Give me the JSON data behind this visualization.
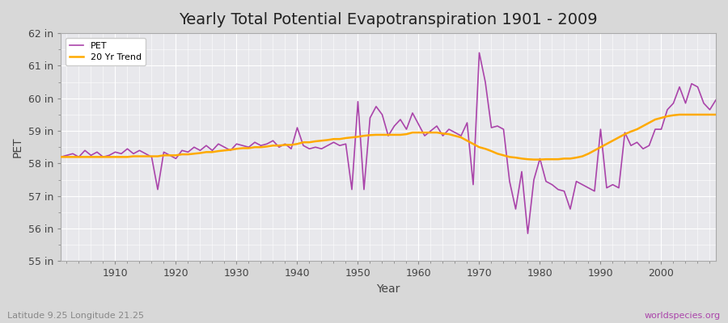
{
  "title": "Yearly Total Potential Evapotranspiration 1901 - 2009",
  "xlabel": "Year",
  "ylabel": "PET",
  "subtitle_left": "Latitude 9.25 Longitude 21.25",
  "subtitle_right": "worldspecies.org",
  "pet_color": "#aa44aa",
  "trend_color": "#ffaa00",
  "bg_color": "#dcdcdc",
  "plot_bg_color": "#e8e8ee",
  "years": [
    1901,
    1902,
    1903,
    1904,
    1905,
    1906,
    1907,
    1908,
    1909,
    1910,
    1911,
    1912,
    1913,
    1914,
    1915,
    1916,
    1917,
    1918,
    1919,
    1920,
    1921,
    1922,
    1923,
    1924,
    1925,
    1926,
    1927,
    1928,
    1929,
    1930,
    1931,
    1932,
    1933,
    1934,
    1935,
    1936,
    1937,
    1938,
    1939,
    1940,
    1941,
    1942,
    1943,
    1944,
    1945,
    1946,
    1947,
    1948,
    1949,
    1950,
    1951,
    1952,
    1953,
    1954,
    1955,
    1956,
    1957,
    1958,
    1959,
    1960,
    1961,
    1962,
    1963,
    1964,
    1965,
    1966,
    1967,
    1968,
    1969,
    1970,
    1971,
    1972,
    1973,
    1974,
    1975,
    1976,
    1977,
    1978,
    1979,
    1980,
    1981,
    1982,
    1983,
    1984,
    1985,
    1986,
    1987,
    1988,
    1989,
    1990,
    1991,
    1992,
    1993,
    1994,
    1995,
    1996,
    1997,
    1998,
    1999,
    2000,
    2001,
    2002,
    2003,
    2004,
    2005,
    2006,
    2007,
    2008,
    2009
  ],
  "pet_values": [
    58.2,
    58.25,
    58.3,
    58.2,
    58.4,
    58.25,
    58.35,
    58.2,
    58.25,
    58.35,
    58.3,
    58.45,
    58.3,
    58.4,
    58.3,
    58.2,
    57.2,
    58.35,
    58.25,
    58.15,
    58.4,
    58.35,
    58.5,
    58.4,
    58.55,
    58.4,
    58.6,
    58.5,
    58.4,
    58.6,
    58.55,
    58.5,
    58.65,
    58.55,
    58.6,
    58.7,
    58.5,
    58.6,
    58.45,
    59.1,
    58.55,
    58.45,
    58.5,
    58.45,
    58.55,
    58.65,
    58.55,
    58.6,
    57.2,
    59.9,
    57.2,
    59.4,
    59.75,
    59.5,
    58.85,
    59.15,
    59.35,
    59.05,
    59.55,
    59.2,
    58.85,
    59.0,
    59.15,
    58.85,
    59.05,
    58.95,
    58.85,
    59.25,
    57.35,
    61.4,
    60.5,
    59.1,
    59.15,
    59.05,
    57.45,
    56.6,
    57.75,
    55.85,
    57.5,
    58.15,
    57.45,
    57.35,
    57.2,
    57.15,
    56.6,
    57.45,
    57.35,
    57.25,
    57.15,
    59.05,
    57.25,
    57.35,
    57.25,
    58.95,
    58.55,
    58.65,
    58.45,
    58.55,
    59.05,
    59.05,
    59.65,
    59.85,
    60.35,
    59.85,
    60.45,
    60.35,
    59.85,
    59.65,
    59.95
  ],
  "trend_values": [
    58.2,
    58.2,
    58.2,
    58.2,
    58.2,
    58.2,
    58.2,
    58.2,
    58.2,
    58.2,
    58.2,
    58.2,
    58.22,
    58.22,
    58.22,
    58.22,
    58.22,
    58.25,
    58.25,
    58.25,
    58.28,
    58.28,
    58.3,
    58.32,
    58.35,
    58.35,
    58.38,
    58.4,
    58.42,
    58.45,
    58.47,
    58.47,
    58.5,
    58.5,
    58.52,
    58.55,
    58.55,
    58.57,
    58.57,
    58.6,
    58.65,
    58.65,
    58.68,
    58.7,
    58.72,
    58.75,
    58.75,
    58.78,
    58.8,
    58.82,
    58.85,
    58.87,
    58.88,
    58.88,
    58.88,
    58.88,
    58.88,
    58.9,
    58.95,
    58.95,
    58.95,
    58.95,
    58.95,
    58.92,
    58.9,
    58.85,
    58.8,
    58.7,
    58.6,
    58.5,
    58.45,
    58.38,
    58.3,
    58.25,
    58.2,
    58.18,
    58.15,
    58.13,
    58.12,
    58.12,
    58.13,
    58.13,
    58.13,
    58.15,
    58.15,
    58.18,
    58.22,
    58.3,
    58.4,
    58.5,
    58.6,
    58.7,
    58.8,
    58.9,
    58.98,
    59.05,
    59.15,
    59.25,
    59.35,
    59.4,
    59.45,
    59.48,
    59.5,
    59.5,
    59.5,
    59.5,
    59.5,
    59.5,
    59.5
  ],
  "ylim": [
    55.0,
    62.0
  ],
  "yticks": [
    55,
    56,
    57,
    58,
    59,
    60,
    61,
    62
  ],
  "ytick_labels": [
    "55 in",
    "56 in",
    "57 in",
    "58 in",
    "59 in",
    "60 in",
    "61 in",
    "62 in"
  ],
  "xticks": [
    1910,
    1920,
    1930,
    1940,
    1950,
    1960,
    1970,
    1980,
    1990,
    2000
  ],
  "grid_color": "#ffffff",
  "pet_linewidth": 1.2,
  "trend_linewidth": 1.8,
  "title_fontsize": 14,
  "axis_fontsize": 10,
  "tick_fontsize": 9
}
